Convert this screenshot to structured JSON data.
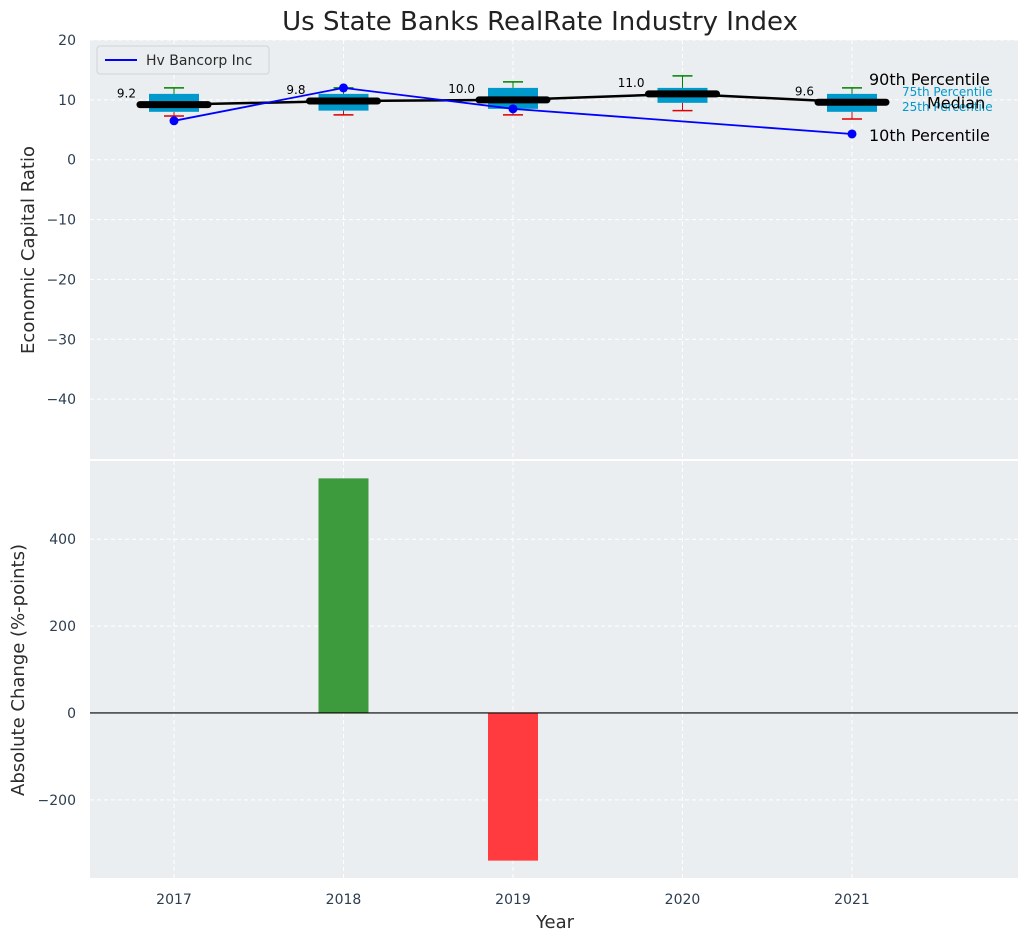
{
  "chart_data": [
    {
      "type": "box",
      "title": "Us State Banks RealRate Industry Index",
      "ylabel": "Economic Capital Ratio",
      "ylim": [
        -50,
        20
      ],
      "yticks": [
        20,
        10,
        0,
        -10,
        -20,
        -30,
        -40
      ],
      "categories": [
        "2017",
        "2018",
        "2019",
        "2020",
        "2021"
      ],
      "grid": true,
      "legend": {
        "position": "top-left",
        "entries": [
          "Hv Bancorp Inc"
        ]
      },
      "percentiles": {
        "p10": [
          7.3,
          7.5,
          7.5,
          8.2,
          6.8
        ],
        "p25": [
          8.0,
          8.2,
          8.5,
          9.5,
          8.0
        ],
        "median": [
          9.2,
          9.8,
          10.0,
          11.0,
          9.6
        ],
        "p75": [
          11.0,
          11.0,
          12.0,
          12.0,
          11.0
        ],
        "p90": [
          12.0,
          12.0,
          13.0,
          14.0,
          12.0
        ]
      },
      "median_labels": [
        "9.2",
        "9.8",
        "10.0",
        "11.0",
        "9.6"
      ],
      "series": [
        {
          "name": "Hv Bancorp Inc",
          "values": [
            6.5,
            12.0,
            8.5,
            null,
            4.3
          ]
        }
      ],
      "annotations": {
        "p90": "90th Percentile",
        "p75": "75th Percentile",
        "median": "Median",
        "p25": "25th Percentile",
        "p10": "10th Percentile"
      },
      "colors": {
        "box": "#0099cc",
        "median_line": "#000000",
        "series": "#0000ff",
        "whisker_top": "#008000",
        "whisker_bottom": "#dd0000",
        "background": "#eaeef0"
      }
    },
    {
      "type": "bar",
      "xlabel": "Year",
      "ylabel": "Absolute Change (%-points)",
      "categories": [
        "2017",
        "2018",
        "2019",
        "2020",
        "2021"
      ],
      "values": [
        null,
        540,
        -340,
        null,
        null
      ],
      "ylim": [
        -380,
        580
      ],
      "yticks": [
        400,
        200,
        0,
        -200
      ],
      "grid": true,
      "colors": {
        "positive": "#3d9b3d",
        "negative": "#ff3b3f"
      }
    }
  ]
}
